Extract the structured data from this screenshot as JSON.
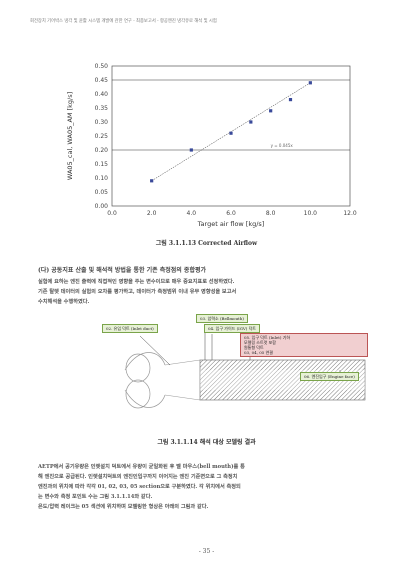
{
  "header": "회전장치 기어박스 냉각 및 윤활 시스템 개발에 관한 연구 - 최종보고서 - 항공엔진 냉각유로 해석 및 시험",
  "chart_data": {
    "type": "scatter",
    "title": "",
    "xlabel": "Target air flow [kg/s]",
    "ylabel": "WA05_cal, WA05_AM [kg/s]",
    "xlim": [
      0.0,
      12.0
    ],
    "ylim": [
      0.0,
      0.5
    ],
    "xticks": [
      "0.0",
      "2.0",
      "4.0",
      "6.0",
      "8.0",
      "10.0",
      "12.0"
    ],
    "yticks": [
      "0.00",
      "0.05",
      "0.10",
      "0.15",
      "0.20",
      "0.25",
      "0.30",
      "0.35",
      "0.40",
      "0.45",
      "0.50"
    ],
    "points": [
      {
        "x": 2.0,
        "y": 0.09
      },
      {
        "x": 4.0,
        "y": 0.2
      },
      {
        "x": 6.0,
        "y": 0.26
      },
      {
        "x": 7.0,
        "y": 0.3
      },
      {
        "x": 8.0,
        "y": 0.34
      },
      {
        "x": 9.0,
        "y": 0.38
      },
      {
        "x": 10.0,
        "y": 0.44
      }
    ],
    "hlines": [
      0.2,
      0.45
    ],
    "annotation": "y = 0.045x"
  },
  "caption1": "그림 3.1.1.13 Corrected Airflow",
  "section_heading": "(다) 공동지표 산출 및 해석적 방법을 통한 기존 측정점의 종합평가",
  "para1": [
    "실험에 요하는 엔진 출력에 직접적인 영향을 주는 변수이므로 매우 중요지표로 선정하였다.",
    "기존 탈렛 데이터의 실험의 오차를 평가하고, 데이터가 측정범위 이내 유무 영향성을 보고서",
    "수치해석을 수행하였다."
  ],
  "model": {
    "label_top": "03. 압력소 (Bellmouth)",
    "label_mid": "04. 입구 가이드 (IGV) 덕트",
    "label_left": "02. 유입 덕트 (Inlet duct)",
    "label_right_box": [
      "05. 입구 덕트 (Inlet) 기하",
      "모델링 스트럿 포함",
      "원통형 덕트",
      "03, 04, 05 연결"
    ],
    "label_bottom_right": "06. 엔진입구 (Engine face)"
  },
  "caption2": "그림 3.1.1.14 해석 대상 모델링 결과",
  "para2": [
    "AETP에서 공기유량은 인렛설치 덕트에서 유량이 균일화된 후 벨 마우스(bell mouth)를 통",
    "해 엔진으로 공급된다. 인렛설치덕트의 엔진인입구까지 이어지는 엔진 기준면으로 그 측정치",
    "엔진과의 위치에 따라 각각 01, 02, 03, 05 section으로 구분하였다. 각 위치에서 측정되",
    "는 변수와 측정 포인트 수는 그림 3.1.1.14와 같다.",
    "  은도/압력 레이크는 05 섹션에 위치하며 모델링한 형상은 아래의 그림과 같다."
  ],
  "page_number": "- 35 -"
}
